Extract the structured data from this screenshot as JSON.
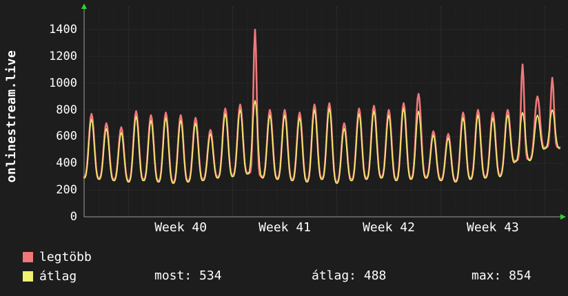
{
  "title": "onlinestream.live",
  "colors": {
    "background": "#1d1d1d",
    "grid": "#3d3d3d",
    "grid_day": "#2b2b2b",
    "grid_week": "#454545",
    "axis": "#a0a0a0",
    "arrow": "#2fd42f",
    "text": "#ffffff"
  },
  "legend": {
    "items": [
      {
        "label": "legtöbb",
        "color": "#f07878"
      },
      {
        "label": "átlag",
        "color": "#f0f070"
      }
    ]
  },
  "footer": {
    "stats": [
      {
        "name": "most",
        "text": "most: 534"
      },
      {
        "name": "atlag",
        "text": "átlag: 488"
      },
      {
        "name": "max",
        "text": "max: 854"
      }
    ]
  },
  "chart_data": {
    "type": "line",
    "title": "onlinestream.live",
    "x_tick_labels": [
      "Week 40",
      "Week 41",
      "Week 42",
      "Week 43"
    ],
    "x_tick_positions_days": [
      6.5,
      13.5,
      20.5,
      27.5
    ],
    "week_boundary_days": [
      3,
      10,
      17,
      24,
      31
    ],
    "days": 32,
    "y_ticks": [
      0,
      200,
      400,
      600,
      800,
      1000,
      1200,
      1400
    ],
    "ylim": [
      0,
      1570
    ],
    "grid": true,
    "legend_position": "bottom-left",
    "stats": {
      "most": 534,
      "atlag": 488,
      "max": 854
    },
    "series": [
      {
        "name": "legtöbb",
        "color": "#f07878",
        "stroke_width": 2.6,
        "daily_peaks": [
          770,
          700,
          670,
          790,
          760,
          780,
          760,
          740,
          650,
          810,
          840,
          1400,
          800,
          800,
          780,
          840,
          850,
          700,
          810,
          830,
          800,
          850,
          920,
          640,
          620,
          780,
          800,
          780,
          800,
          1140,
          900,
          1040
        ],
        "daily_troughs": [
          300,
          290,
          280,
          270,
          280,
          270,
          260,
          270,
          280,
          300,
          310,
          330,
          300,
          290,
          280,
          270,
          290,
          260,
          280,
          290,
          300,
          280,
          290,
          300,
          280,
          270,
          290,
          300,
          310,
          420,
          430,
          520
        ]
      },
      {
        "name": "átlag",
        "color": "#f0f070",
        "stroke_width": 1.6,
        "daily_peaks": [
          730,
          660,
          630,
          750,
          720,
          740,
          720,
          700,
          620,
          770,
          800,
          870,
          760,
          760,
          740,
          800,
          810,
          660,
          770,
          790,
          760,
          810,
          790,
          610,
          590,
          740,
          760,
          740,
          760,
          780,
          760,
          800
        ],
        "daily_troughs": [
          290,
          280,
          270,
          260,
          270,
          260,
          250,
          260,
          270,
          290,
          300,
          320,
          290,
          280,
          270,
          260,
          280,
          250,
          270,
          280,
          290,
          270,
          280,
          290,
          270,
          260,
          280,
          290,
          300,
          410,
          420,
          510
        ]
      }
    ]
  }
}
